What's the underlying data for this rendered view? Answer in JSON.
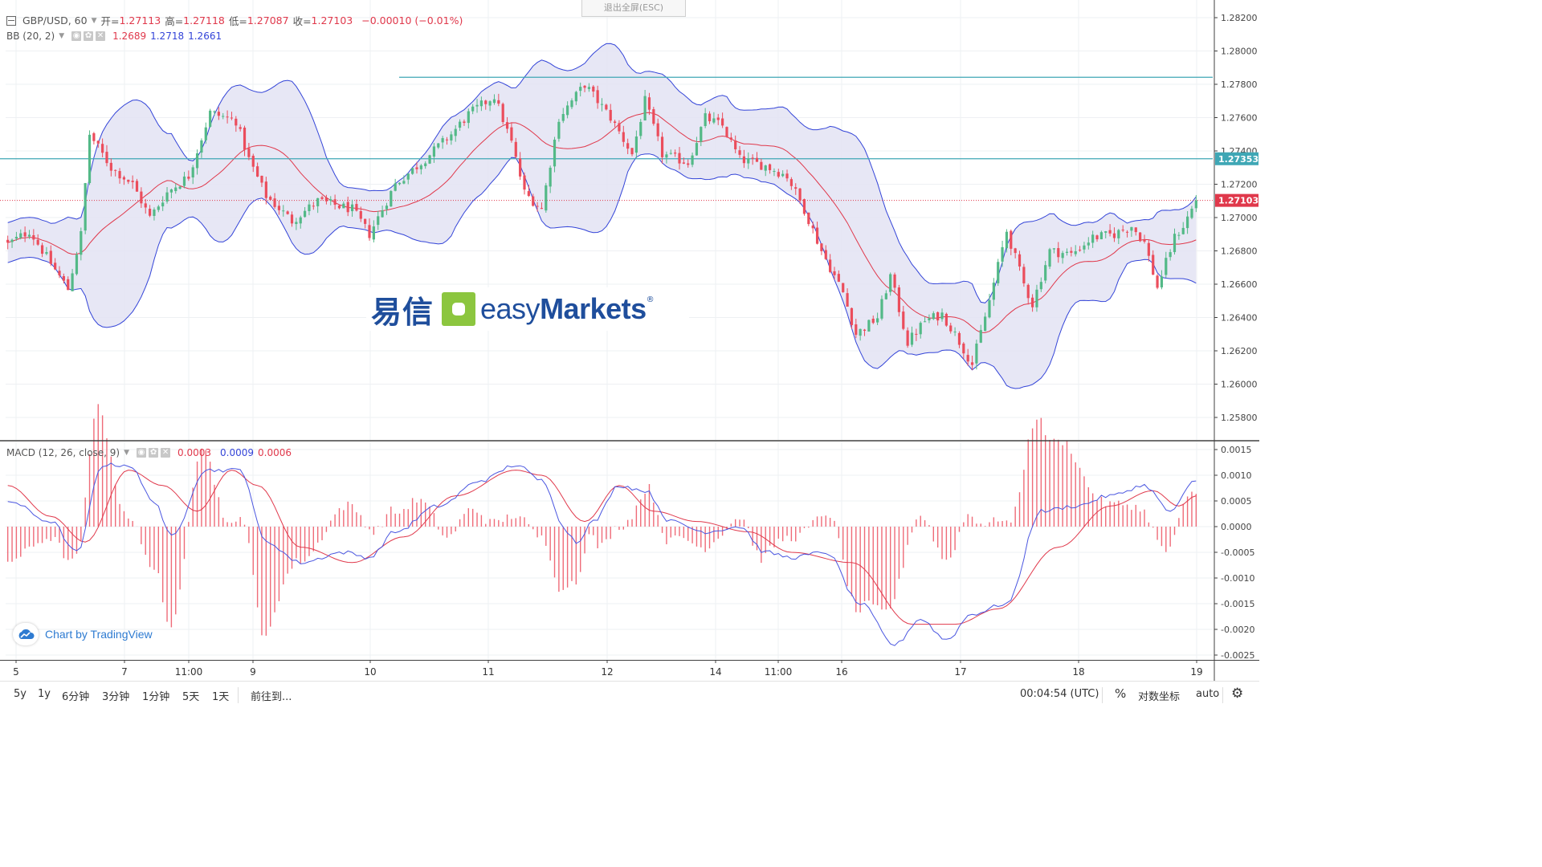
{
  "toolbar": {
    "symbol": "GBP/USD, 60",
    "open_label": "开=",
    "open": "1.27113",
    "high_label": "高=",
    "high": "1.27118",
    "low_label": "低=",
    "low": "1.27087",
    "close_label": "收=",
    "close": "1.27103",
    "change": "−0.00010 (−0.01%)"
  },
  "exit_fullscreen": "退出全屏(ESC)",
  "bb_legend": {
    "name": "BB (20, 2)",
    "mid": "1.2689",
    "upper": "1.2718",
    "lower": "1.2661"
  },
  "macd_legend": {
    "name": "MACD (12, 26, close, 9)",
    "hist": "0.0003",
    "macd": "0.0009",
    "signal": "0.0006"
  },
  "watermark": {
    "cn": "易信",
    "en_light": "easy",
    "en_bold": "Markets",
    "reg": "®"
  },
  "credit": "Chart by TradingView",
  "price_axis": {
    "labels": [
      "1.28200",
      "1.28000",
      "1.27800",
      "1.27600",
      "1.27400",
      "1.27200",
      "1.27000",
      "1.26800",
      "1.26600",
      "1.26400",
      "1.26200",
      "1.26000",
      "1.25800"
    ],
    "hline_price": "1.27353",
    "last_price": "1.27103"
  },
  "macd_axis": {
    "labels": [
      "0.0015",
      "0.0010",
      "0.0005",
      "0.0000",
      "-0.0005",
      "-0.0010",
      "-0.0015",
      "-0.0020",
      "-0.0025"
    ]
  },
  "time_axis": [
    "5",
    "7",
    "11:00",
    "9",
    "10",
    "11",
    "12",
    "14",
    "11:00",
    "16",
    "17",
    "18",
    "19"
  ],
  "bottombar": {
    "ranges": [
      "5y",
      "1y",
      "6分钟",
      "3分钟",
      "1分钟",
      "5天",
      "1天"
    ],
    "goto": "前往到...",
    "clock": "00:04:54 (UTC)",
    "percent": "%",
    "log": "对数坐标",
    "auto": "auto"
  },
  "colors": {
    "up": "#53b987",
    "down": "#eb4d5c",
    "bb_line": "#3344d8",
    "bb_fill": "#e3e3f3",
    "hline": "#3fa7b5",
    "last": "#e0384b"
  },
  "chart_data": [
    {
      "type": "candlestick",
      "title": "GBP/USD, 60",
      "time_ticks": [
        "5",
        "7",
        "11:00",
        "9",
        "10",
        "11",
        "12",
        "14",
        "11:00",
        "16",
        "17",
        "18",
        "19"
      ],
      "ylim": [
        1.2572,
        1.2828
      ],
      "horizontal_lines": [
        1.27842,
        1.27353
      ],
      "last_price": 1.27103,
      "anchors": [
        {
          "i": 0,
          "p": 1.2684
        },
        {
          "i": 5,
          "p": 1.2692
        },
        {
          "i": 14,
          "p": 1.2657
        },
        {
          "i": 17,
          "p": 1.269
        },
        {
          "i": 19,
          "p": 1.275
        },
        {
          "i": 24,
          "p": 1.273
        },
        {
          "i": 29,
          "p": 1.272
        },
        {
          "i": 33,
          "p": 1.27
        },
        {
          "i": 37,
          "p": 1.2715
        },
        {
          "i": 42,
          "p": 1.2725
        },
        {
          "i": 47,
          "p": 1.2763
        },
        {
          "i": 53,
          "p": 1.2758
        },
        {
          "i": 56,
          "p": 1.2735
        },
        {
          "i": 60,
          "p": 1.2713
        },
        {
          "i": 66,
          "p": 1.2698
        },
        {
          "i": 72,
          "p": 1.271
        },
        {
          "i": 80,
          "p": 1.2705
        },
        {
          "i": 84,
          "p": 1.269
        },
        {
          "i": 90,
          "p": 1.272
        },
        {
          "i": 96,
          "p": 1.2733
        },
        {
          "i": 103,
          "p": 1.275
        },
        {
          "i": 107,
          "p": 1.2762
        },
        {
          "i": 113,
          "p": 1.2773
        },
        {
          "i": 117,
          "p": 1.2745
        },
        {
          "i": 120,
          "p": 1.2715
        },
        {
          "i": 124,
          "p": 1.2705
        },
        {
          "i": 128,
          "p": 1.276
        },
        {
          "i": 134,
          "p": 1.278
        },
        {
          "i": 140,
          "p": 1.276
        },
        {
          "i": 145,
          "p": 1.2738
        },
        {
          "i": 148,
          "p": 1.277
        },
        {
          "i": 152,
          "p": 1.2738
        },
        {
          "i": 158,
          "p": 1.2733
        },
        {
          "i": 162,
          "p": 1.276
        },
        {
          "i": 166,
          "p": 1.2755
        },
        {
          "i": 170,
          "p": 1.2735
        },
        {
          "i": 176,
          "p": 1.2731
        },
        {
          "i": 181,
          "p": 1.2725
        },
        {
          "i": 185,
          "p": 1.2705
        },
        {
          "i": 189,
          "p": 1.268
        },
        {
          "i": 194,
          "p": 1.2655
        },
        {
          "i": 197,
          "p": 1.263
        },
        {
          "i": 202,
          "p": 1.264
        },
        {
          "i": 205,
          "p": 1.2665
        },
        {
          "i": 209,
          "p": 1.2625
        },
        {
          "i": 213,
          "p": 1.2638
        },
        {
          "i": 217,
          "p": 1.2642
        },
        {
          "i": 220,
          "p": 1.263
        },
        {
          "i": 224,
          "p": 1.2612
        },
        {
          "i": 228,
          "p": 1.265
        },
        {
          "i": 232,
          "p": 1.2692
        },
        {
          "i": 236,
          "p": 1.266
        },
        {
          "i": 238,
          "p": 1.2648
        },
        {
          "i": 242,
          "p": 1.268
        },
        {
          "i": 247,
          "p": 1.2678
        },
        {
          "i": 252,
          "p": 1.2688
        },
        {
          "i": 257,
          "p": 1.269
        },
        {
          "i": 261,
          "p": 1.2695
        },
        {
          "i": 264,
          "p": 1.2685
        },
        {
          "i": 267,
          "p": 1.2658
        },
        {
          "i": 271,
          "p": 1.2688
        },
        {
          "i": 273,
          "p": 1.2695
        },
        {
          "i": 276,
          "p": 1.271
        }
      ]
    },
    {
      "type": "line",
      "title": "MACD (12, 26, close, 9)",
      "ylim": [
        -0.0026,
        0.0016
      ],
      "series": [
        {
          "name": "MACD",
          "anchors": [
            [
              0,
              0.0005
            ],
            [
              10,
              0.0001
            ],
            [
              16,
              -0.0005
            ],
            [
              22,
              0.0012
            ],
            [
              28,
              0.0012
            ],
            [
              34,
              0.0005
            ],
            [
              38,
              -0.0002
            ],
            [
              46,
              0.0011
            ],
            [
              54,
              0.0011
            ],
            [
              60,
              -0.0003
            ],
            [
              68,
              -0.0007
            ],
            [
              78,
              -0.0005
            ],
            [
              84,
              -0.0006
            ],
            [
              90,
              -0.0001
            ],
            [
              100,
              0.0004
            ],
            [
              110,
              0.0009
            ],
            [
              118,
              0.0012
            ],
            [
              124,
              0.0009
            ],
            [
              130,
              -0.0001
            ],
            [
              132,
              -0.0003
            ],
            [
              136,
              0.0001
            ],
            [
              142,
              0.0008
            ],
            [
              148,
              0.0007
            ],
            [
              154,
              0.0001
            ],
            [
              162,
              -0.0001
            ],
            [
              170,
              0.0
            ],
            [
              176,
              -0.0005
            ],
            [
              182,
              -0.0006
            ],
            [
              190,
              -0.0005
            ],
            [
              198,
              -0.0015
            ],
            [
              206,
              -0.0023
            ],
            [
              212,
              -0.0018
            ],
            [
              218,
              -0.0022
            ],
            [
              224,
              -0.0017
            ],
            [
              232,
              -0.0015
            ],
            [
              240,
              0.0003
            ],
            [
              248,
              0.0004
            ],
            [
              256,
              0.0006
            ],
            [
              264,
              0.0008
            ],
            [
              270,
              0.0003
            ],
            [
              276,
              0.0009
            ]
          ]
        },
        {
          "name": "Signal",
          "anchors": [
            [
              0,
              0.0008
            ],
            [
              10,
              0.0002
            ],
            [
              18,
              -0.0003
            ],
            [
              28,
              0.0011
            ],
            [
              36,
              0.0008
            ],
            [
              44,
              0.0003
            ],
            [
              52,
              0.0011
            ],
            [
              58,
              0.0008
            ],
            [
              68,
              -0.0004
            ],
            [
              80,
              -0.0007
            ],
            [
              92,
              -0.0002
            ],
            [
              104,
              0.0006
            ],
            [
              118,
              0.0011
            ],
            [
              124,
              0.001
            ],
            [
              134,
              0.0001
            ],
            [
              142,
              0.0008
            ],
            [
              150,
              0.0003
            ],
            [
              160,
              0.0001
            ],
            [
              172,
              -0.0001
            ],
            [
              182,
              -0.0005
            ],
            [
              196,
              -0.0007
            ],
            [
              210,
              -0.0019
            ],
            [
              220,
              -0.0019
            ],
            [
              230,
              -0.0016
            ],
            [
              244,
              -0.0004
            ],
            [
              256,
              0.0004
            ],
            [
              266,
              0.0007
            ],
            [
              272,
              0.0004
            ],
            [
              276,
              0.0006
            ]
          ]
        }
      ],
      "histogram": "MACD minus Signal"
    }
  ]
}
